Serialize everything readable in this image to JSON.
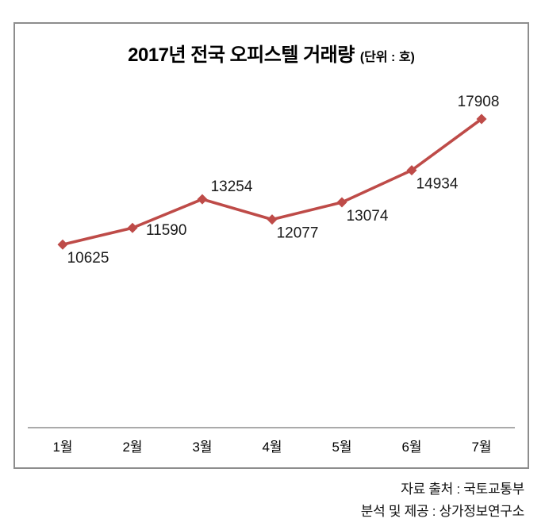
{
  "title": {
    "main": "2017년 전국 오피스텔 거래량",
    "unit": "(단위 : 호)"
  },
  "footer": {
    "source": "자료 출처 : 국토교통부",
    "provider": "분석 및 제공 : 상가정보연구소"
  },
  "colors": {
    "line": "#be4b48",
    "marker": "#be4b48",
    "axis": "#8d8d8d",
    "frame": "#8d8d8d",
    "data_label": "#1a1a1a",
    "tick_label": "#000000"
  },
  "chart_data": {
    "type": "line",
    "title": "2017년 전국 오피스텔 거래량 (단위 : 호)",
    "categories": [
      "1월",
      "2월",
      "3월",
      "4월",
      "5월",
      "6월",
      "7월"
    ],
    "series": [
      {
        "name": "오피스텔 거래량",
        "values": [
          10625,
          11590,
          13254,
          12077,
          13074,
          14934,
          17908
        ]
      }
    ],
    "data_labels": [
      "10625",
      "11590",
      "13254",
      "12077",
      "13074",
      "14934",
      "17908"
    ],
    "label_positions": [
      "below",
      "right",
      "above-right",
      "below",
      "below",
      "below",
      "above"
    ],
    "xlabel": "",
    "ylabel": "",
    "ylim": [
      0,
      20000
    ],
    "grid": false,
    "legend": false,
    "marker": "diamond"
  }
}
